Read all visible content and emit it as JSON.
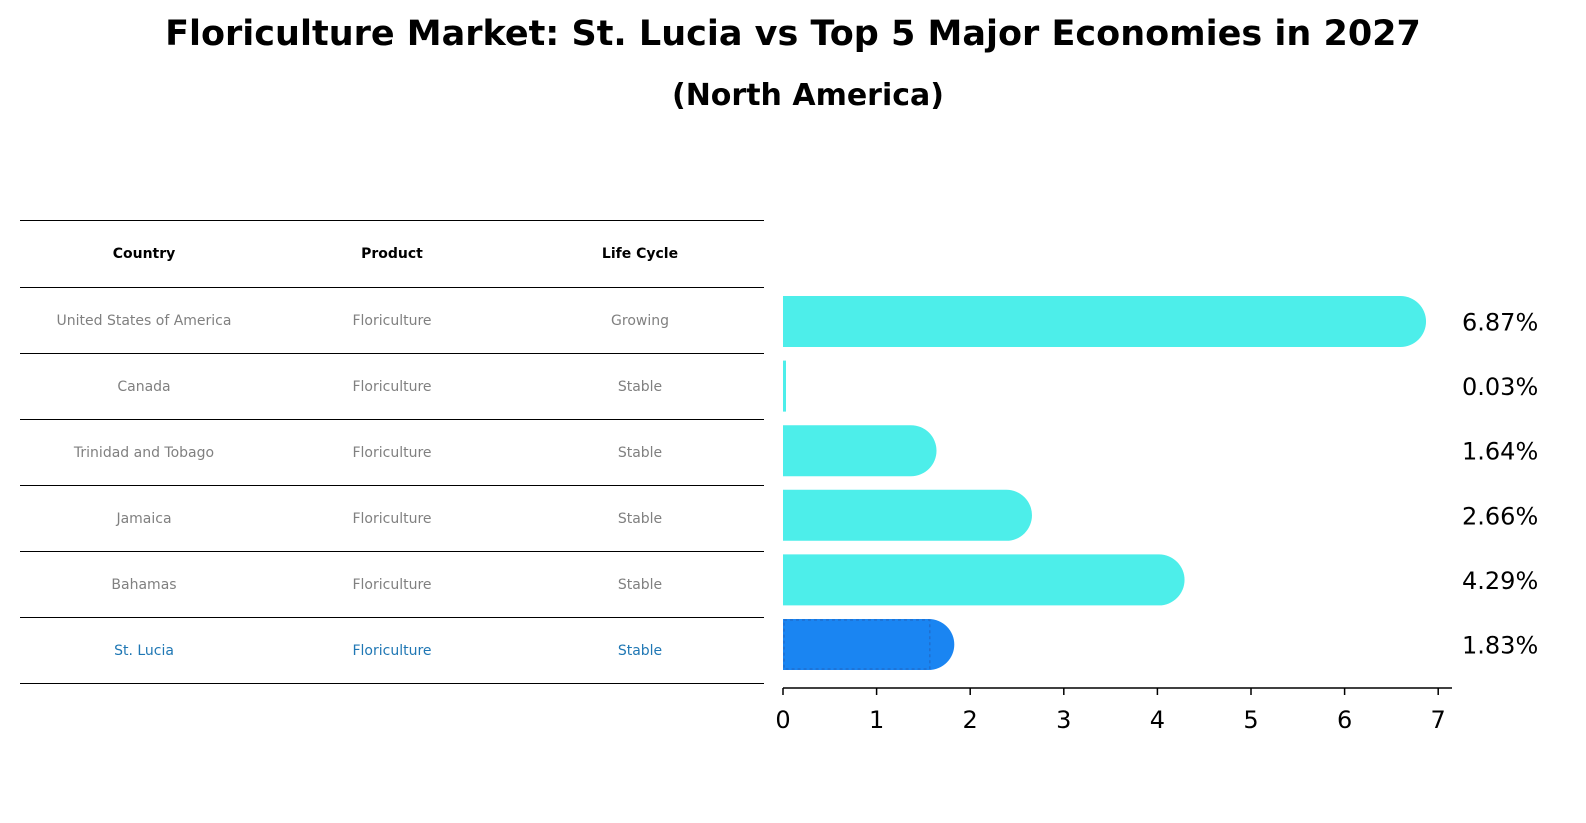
{
  "chart_data": {
    "type": "bar",
    "orientation": "horizontal",
    "title": "Floriculture Market: St. Lucia vs Top 5 Major Economies in 2027",
    "subtitle": "(North America)",
    "categories": [
      "United States of America",
      "Canada",
      "Trinidad and Tobago",
      "Jamaica",
      "Bahamas",
      "St. Lucia"
    ],
    "values": [
      6.87,
      0.03,
      1.64,
      2.66,
      4.29,
      1.83
    ],
    "value_labels": [
      "6.87%",
      "0.03%",
      "1.64%",
      "2.66%",
      "4.29%",
      "1.83%"
    ],
    "highlight": "St. Lucia",
    "xlim": [
      0,
      7.2
    ],
    "xticks": [
      "0",
      "1",
      "2",
      "3",
      "4",
      "5",
      "6",
      "7"
    ],
    "colors": {
      "default": "#4DEEEA",
      "highlight": "#1A85F2"
    }
  },
  "table": {
    "headers": [
      "Country",
      "Product",
      "Life Cycle"
    ],
    "rows": [
      [
        "United States of America",
        "Floriculture",
        "Growing"
      ],
      [
        "Canada",
        "Floriculture",
        "Stable"
      ],
      [
        "Trinidad and Tobago",
        "Floriculture",
        "Stable"
      ],
      [
        "Jamaica",
        "Floriculture",
        "Stable"
      ],
      [
        "Bahamas",
        "Floriculture",
        "Stable"
      ],
      [
        "St. Lucia",
        "Floriculture",
        "Stable"
      ]
    ],
    "highlight_color": "#1f77b4"
  }
}
